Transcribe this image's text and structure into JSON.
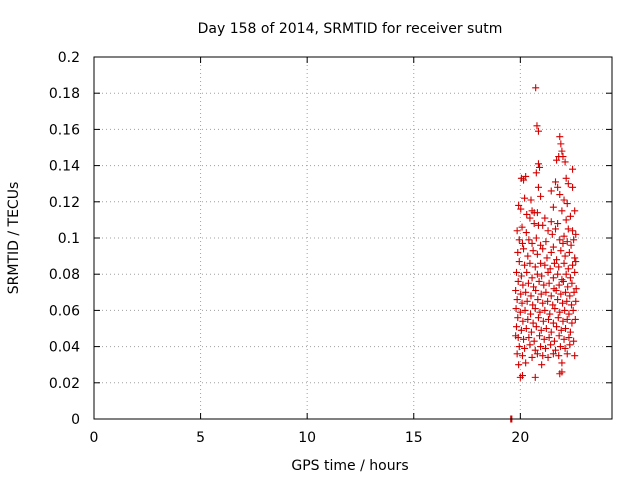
{
  "chart_data": {
    "type": "scatter",
    "title": "Day 158 of 2014, SRMTID for receiver sutm",
    "xlabel": "GPS time / hours",
    "ylabel": "SRMTID / TECUs",
    "xlim": [
      0,
      24.3
    ],
    "ylim": [
      0,
      0.2
    ],
    "xticks": [
      0,
      5,
      10,
      15,
      20
    ],
    "xtick_labels": [
      "0",
      "5",
      "10",
      "15",
      "20"
    ],
    "yticks": [
      0,
      0.02,
      0.04,
      0.06,
      0.08,
      0.1,
      0.12,
      0.14,
      0.16,
      0.18,
      0.2
    ],
    "ytick_labels": [
      "0",
      "0.02",
      "0.04",
      "0.06",
      "0.08",
      "0.1",
      "0.12",
      "0.14",
      "0.16",
      "0.18",
      "0.2"
    ],
    "grid": true,
    "marker": "plus",
    "color": "#d40000",
    "series": [
      {
        "name": "SRMTID",
        "points": [
          [
            19.55,
            0.0
          ],
          [
            19.57,
            0.0
          ],
          [
            19.6,
            0.0
          ],
          [
            20.72,
            0.183
          ],
          [
            20.78,
            0.162
          ],
          [
            20.85,
            0.159
          ],
          [
            21.85,
            0.156
          ],
          [
            21.9,
            0.152
          ],
          [
            21.95,
            0.148
          ],
          [
            21.7,
            0.143
          ],
          [
            21.8,
            0.145
          ],
          [
            22.0,
            0.145
          ],
          [
            20.85,
            0.141
          ],
          [
            20.9,
            0.139
          ],
          [
            22.1,
            0.142
          ],
          [
            22.45,
            0.138
          ],
          [
            20.05,
            0.133
          ],
          [
            20.15,
            0.132
          ],
          [
            20.25,
            0.134
          ],
          [
            20.75,
            0.136
          ],
          [
            20.85,
            0.128
          ],
          [
            21.45,
            0.126
          ],
          [
            21.65,
            0.131
          ],
          [
            21.75,
            0.128
          ],
          [
            22.15,
            0.133
          ],
          [
            22.25,
            0.13
          ],
          [
            22.45,
            0.128
          ],
          [
            20.2,
            0.122
          ],
          [
            20.5,
            0.121
          ],
          [
            20.95,
            0.123
          ],
          [
            21.85,
            0.124
          ],
          [
            22.05,
            0.121
          ],
          [
            22.2,
            0.119
          ],
          [
            19.92,
            0.118
          ],
          [
            20.02,
            0.116
          ],
          [
            20.55,
            0.115
          ],
          [
            20.65,
            0.114
          ],
          [
            20.8,
            0.114
          ],
          [
            21.55,
            0.117
          ],
          [
            21.95,
            0.115
          ],
          [
            22.35,
            0.112
          ],
          [
            22.55,
            0.115
          ],
          [
            20.3,
            0.113
          ],
          [
            20.45,
            0.111
          ],
          [
            21.15,
            0.111
          ],
          [
            21.45,
            0.109
          ],
          [
            22.15,
            0.11
          ],
          [
            19.85,
            0.104
          ],
          [
            20.08,
            0.106
          ],
          [
            20.28,
            0.103
          ],
          [
            20.65,
            0.108
          ],
          [
            20.85,
            0.107
          ],
          [
            21.05,
            0.107
          ],
          [
            21.3,
            0.104
          ],
          [
            21.5,
            0.102
          ],
          [
            21.65,
            0.105
          ],
          [
            21.75,
            0.108
          ],
          [
            22.05,
            0.101
          ],
          [
            22.25,
            0.105
          ],
          [
            22.45,
            0.104
          ],
          [
            22.6,
            0.102
          ],
          [
            19.95,
            0.099
          ],
          [
            20.1,
            0.097
          ],
          [
            20.4,
            0.099
          ],
          [
            20.55,
            0.097
          ],
          [
            20.75,
            0.1
          ],
          [
            20.95,
            0.096
          ],
          [
            21.2,
            0.098
          ],
          [
            21.55,
            0.095
          ],
          [
            21.85,
            0.099
          ],
          [
            22.0,
            0.097
          ],
          [
            22.2,
            0.098
          ],
          [
            22.38,
            0.096
          ],
          [
            22.5,
            0.099
          ],
          [
            19.88,
            0.092
          ],
          [
            20.15,
            0.094
          ],
          [
            20.35,
            0.09
          ],
          [
            20.6,
            0.093
          ],
          [
            20.8,
            0.091
          ],
          [
            21.05,
            0.094
          ],
          [
            21.25,
            0.089
          ],
          [
            21.45,
            0.092
          ],
          [
            21.7,
            0.088
          ],
          [
            21.9,
            0.093
          ],
          [
            22.1,
            0.09
          ],
          [
            22.3,
            0.092
          ],
          [
            22.55,
            0.089
          ],
          [
            19.95,
            0.087
          ],
          [
            20.2,
            0.085
          ],
          [
            20.45,
            0.086
          ],
          [
            20.7,
            0.084
          ],
          [
            20.95,
            0.086
          ],
          [
            21.15,
            0.085
          ],
          [
            21.4,
            0.083
          ],
          [
            21.6,
            0.086
          ],
          [
            21.8,
            0.084
          ],
          [
            22.05,
            0.086
          ],
          [
            22.25,
            0.083
          ],
          [
            22.45,
            0.085
          ],
          [
            22.6,
            0.087
          ],
          [
            19.82,
            0.081
          ],
          [
            20.05,
            0.079
          ],
          [
            20.3,
            0.081
          ],
          [
            20.55,
            0.078
          ],
          [
            20.8,
            0.08
          ],
          [
            21.0,
            0.079
          ],
          [
            21.3,
            0.081
          ],
          [
            21.55,
            0.078
          ],
          [
            21.75,
            0.08
          ],
          [
            21.95,
            0.077
          ],
          [
            22.15,
            0.08
          ],
          [
            22.35,
            0.078
          ],
          [
            22.55,
            0.081
          ],
          [
            19.9,
            0.076
          ],
          [
            20.12,
            0.074
          ],
          [
            20.38,
            0.075
          ],
          [
            20.62,
            0.073
          ],
          [
            20.88,
            0.076
          ],
          [
            21.1,
            0.074
          ],
          [
            21.35,
            0.075
          ],
          [
            21.58,
            0.072
          ],
          [
            21.82,
            0.074
          ],
          [
            22.02,
            0.076
          ],
          [
            22.22,
            0.073
          ],
          [
            22.42,
            0.075
          ],
          [
            22.62,
            0.072
          ],
          [
            19.78,
            0.071
          ],
          [
            20.02,
            0.069
          ],
          [
            20.25,
            0.07
          ],
          [
            20.5,
            0.068
          ],
          [
            20.72,
            0.071
          ],
          [
            20.98,
            0.069
          ],
          [
            21.2,
            0.07
          ],
          [
            21.45,
            0.068
          ],
          [
            21.68,
            0.071
          ],
          [
            21.9,
            0.069
          ],
          [
            22.12,
            0.07
          ],
          [
            22.32,
            0.068
          ],
          [
            22.52,
            0.07
          ],
          [
            19.85,
            0.066
          ],
          [
            20.08,
            0.064
          ],
          [
            20.32,
            0.065
          ],
          [
            20.58,
            0.063
          ],
          [
            20.82,
            0.066
          ],
          [
            21.05,
            0.064
          ],
          [
            21.28,
            0.065
          ],
          [
            21.52,
            0.063
          ],
          [
            21.75,
            0.066
          ],
          [
            21.98,
            0.064
          ],
          [
            22.18,
            0.065
          ],
          [
            22.4,
            0.063
          ],
          [
            22.6,
            0.065
          ],
          [
            19.8,
            0.061
          ],
          [
            20.0,
            0.059
          ],
          [
            20.22,
            0.06
          ],
          [
            20.48,
            0.058
          ],
          [
            20.7,
            0.061
          ],
          [
            20.92,
            0.059
          ],
          [
            21.15,
            0.06
          ],
          [
            21.38,
            0.058
          ],
          [
            21.62,
            0.061
          ],
          [
            21.85,
            0.059
          ],
          [
            22.08,
            0.06
          ],
          [
            22.28,
            0.058
          ],
          [
            22.48,
            0.06
          ],
          [
            19.88,
            0.056
          ],
          [
            20.12,
            0.054
          ],
          [
            20.35,
            0.055
          ],
          [
            20.6,
            0.053
          ],
          [
            20.85,
            0.056
          ],
          [
            21.08,
            0.054
          ],
          [
            21.32,
            0.055
          ],
          [
            21.55,
            0.053
          ],
          [
            21.78,
            0.056
          ],
          [
            22.0,
            0.054
          ],
          [
            22.2,
            0.055
          ],
          [
            22.42,
            0.053
          ],
          [
            22.58,
            0.055
          ],
          [
            19.82,
            0.051
          ],
          [
            20.05,
            0.049
          ],
          [
            20.28,
            0.05
          ],
          [
            20.52,
            0.048
          ],
          [
            20.75,
            0.051
          ],
          [
            20.98,
            0.049
          ],
          [
            21.22,
            0.05
          ],
          [
            21.45,
            0.048
          ],
          [
            21.7,
            0.051
          ],
          [
            21.92,
            0.049
          ],
          [
            22.12,
            0.05
          ],
          [
            22.35,
            0.048
          ],
          [
            19.78,
            0.046
          ],
          [
            19.9,
            0.045
          ],
          [
            20.15,
            0.044
          ],
          [
            20.4,
            0.045
          ],
          [
            20.65,
            0.043
          ],
          [
            20.9,
            0.046
          ],
          [
            21.12,
            0.044
          ],
          [
            21.35,
            0.045
          ],
          [
            21.6,
            0.043
          ],
          [
            21.82,
            0.046
          ],
          [
            22.05,
            0.044
          ],
          [
            22.28,
            0.045
          ],
          [
            22.5,
            0.043
          ],
          [
            19.95,
            0.04
          ],
          [
            20.2,
            0.039
          ],
          [
            20.45,
            0.041
          ],
          [
            20.7,
            0.038
          ],
          [
            20.95,
            0.04
          ],
          [
            21.18,
            0.039
          ],
          [
            21.42,
            0.041
          ],
          [
            21.65,
            0.038
          ],
          [
            21.88,
            0.04
          ],
          [
            22.1,
            0.039
          ],
          [
            22.32,
            0.041
          ],
          [
            19.85,
            0.036
          ],
          [
            20.1,
            0.035
          ],
          [
            20.55,
            0.034
          ],
          [
            20.8,
            0.036
          ],
          [
            21.05,
            0.035
          ],
          [
            21.3,
            0.034
          ],
          [
            21.55,
            0.036
          ],
          [
            21.8,
            0.035
          ],
          [
            22.2,
            0.036
          ],
          [
            22.55,
            0.035
          ],
          [
            19.92,
            0.03
          ],
          [
            20.25,
            0.031
          ],
          [
            21.0,
            0.03
          ],
          [
            21.95,
            0.031
          ],
          [
            20.0,
            0.023
          ],
          [
            20.1,
            0.024
          ],
          [
            20.7,
            0.023
          ],
          [
            21.85,
            0.025
          ],
          [
            21.95,
            0.026
          ]
        ]
      }
    ]
  }
}
